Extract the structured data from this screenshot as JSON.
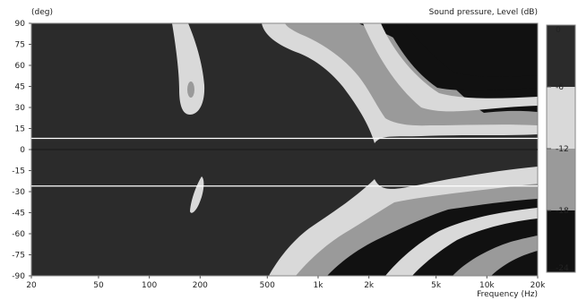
{
  "chart_data": {
    "type": "heatmap",
    "title": "",
    "ylabel": "(deg)",
    "xlabel": "Frequency  (Hz)",
    "colorbar_label": "Sound pressure, Level  (dB)",
    "x_scale": "log",
    "xlim": [
      20,
      20000
    ],
    "ylim": [
      -90,
      90
    ],
    "x_ticks": [
      20,
      50,
      100,
      200,
      500,
      1000,
      2000,
      5000,
      10000,
      20000
    ],
    "x_tick_labels": [
      "20",
      "50",
      "100",
      "200",
      "500",
      "1k",
      "2k",
      "5k",
      "10k",
      "20k"
    ],
    "y_ticks": [
      90,
      75,
      60,
      45,
      30,
      15,
      0,
      -15,
      -30,
      -45,
      -60,
      -75,
      -90
    ],
    "y_tick_labels": [
      "90",
      "75",
      "60",
      "45",
      "30",
      "15",
      "0",
      "-15",
      "-30",
      "-45",
      "-60",
      "-75",
      "-90"
    ],
    "colorbar": {
      "levels": [
        0,
        -6,
        -12,
        -18,
        -24
      ],
      "level_labels": [
        "0",
        "-6",
        "-12",
        "-18",
        "-24"
      ],
      "band_colors": [
        "#2b2b2b",
        "#d9d9d9",
        "#9a9a9a",
        "#111111"
      ]
    },
    "reference_lines_deg": [
      8,
      -26
    ],
    "reference_line_color": "#ffffff",
    "grid": false
  }
}
